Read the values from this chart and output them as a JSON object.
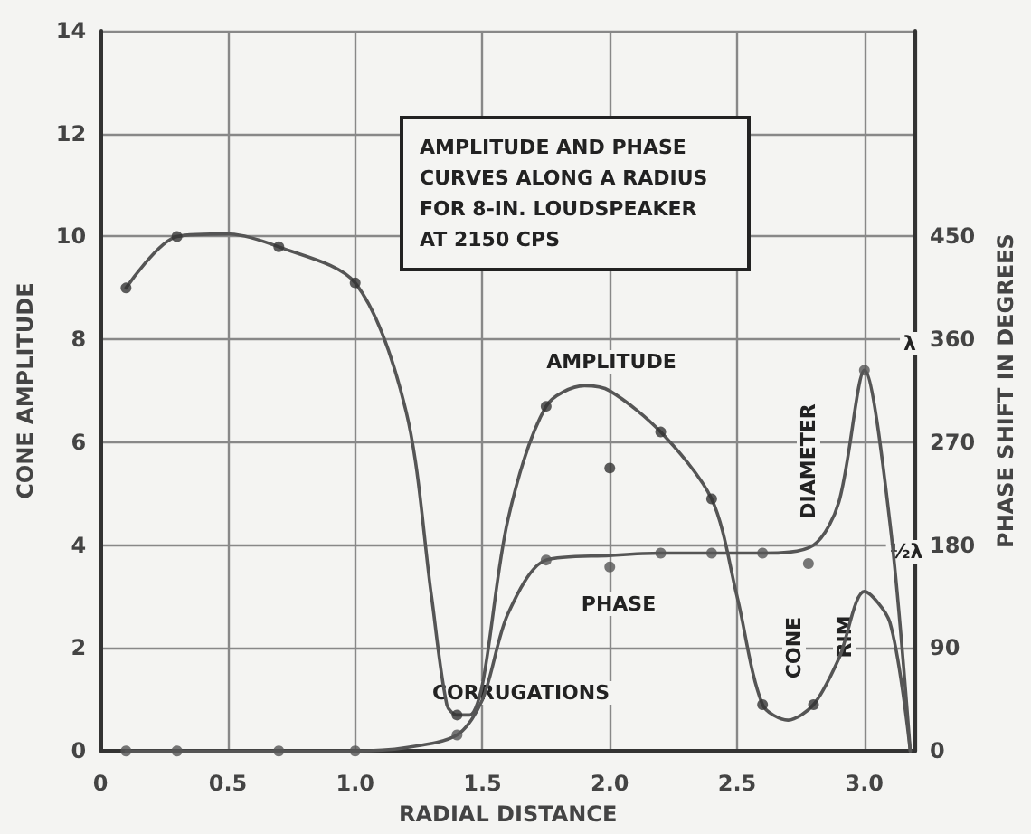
{
  "chart_data": {
    "type": "line",
    "title": "AMPLITUDE AND PHASE CURVES ALONG A RADIUS FOR 8-IN. LOUDSPEAKER AT 2150 CPS",
    "xlabel": "RADIAL DISTANCE",
    "ylabel": "CONE AMPLITUDE",
    "y2label": "PHASE SHIFT IN DEGREES",
    "xlim": [
      0,
      3.2
    ],
    "xticks": [
      0,
      0.5,
      {
        "value": 1,
        "label": "1.0"
      },
      1.5,
      {
        "value": 2,
        "label": "2.0"
      },
      2.5,
      {
        "value": 3,
        "label": "3.0"
      }
    ],
    "ylim": [
      0,
      14
    ],
    "yticks": [
      0,
      2,
      4,
      6,
      8,
      10,
      12,
      14
    ],
    "y2lim": [
      0,
      630
    ],
    "y2ticks": [
      0,
      90,
      180,
      270,
      360,
      450
    ],
    "grid": true,
    "series": [
      {
        "type": "line",
        "axis": "y",
        "color": "#555555",
        "marker": "none",
        "x": [
          0.1,
          0.3,
          0.5,
          0.7,
          1.0,
          1.2,
          1.3,
          1.36,
          1.4,
          1.45,
          1.5,
          1.6,
          1.75,
          1.9,
          2.0,
          2.2,
          2.4,
          2.5,
          2.6,
          2.7,
          2.8,
          2.9,
          3.0,
          3.1,
          3.18
        ],
        "values": [
          9.0,
          10.0,
          10.05,
          9.8,
          9.1,
          6.6,
          3.0,
          0.9,
          0.7,
          0.7,
          1.3,
          4.5,
          6.7,
          7.1,
          7.0,
          6.2,
          4.9,
          3.0,
          0.9,
          0.6,
          0.9,
          1.8,
          3.1,
          2.5,
          0
        ]
      },
      {
        "type": "line",
        "axis": "y2",
        "color": "#555555",
        "marker": "none",
        "x": [
          0.1,
          0.3,
          0.7,
          1.0,
          1.2,
          1.4,
          1.5,
          1.6,
          1.75,
          2.0,
          2.2,
          2.4,
          2.6,
          2.8,
          2.9,
          3.0,
          3.1,
          3.18
        ],
        "values": [
          0,
          0,
          0,
          0,
          3,
          14,
          45,
          120,
          167,
          171,
          173,
          173,
          173,
          180,
          218,
          333,
          200,
          0
        ]
      },
      {
        "type": "scatter",
        "axis": "y",
        "color": "#333333",
        "marker": "circle",
        "x": [
          0.1,
          0.3,
          0.7,
          1.0,
          1.4,
          1.75,
          2.0,
          2.2,
          2.4,
          2.6,
          2.8
        ],
        "values": [
          9.0,
          10.0,
          9.8,
          9.1,
          0.7,
          6.7,
          5.5,
          6.2,
          4.9,
          0.9,
          0.9
        ]
      },
      {
        "type": "scatter",
        "axis": "y2",
        "color": "#555555",
        "marker": "circle",
        "x": [
          0.1,
          0.3,
          0.7,
          1.0,
          1.4,
          1.75,
          2.0,
          2.2,
          2.4,
          2.6,
          2.78,
          3.0
        ],
        "values": [
          0,
          0,
          0,
          0,
          14,
          167,
          161,
          173,
          173,
          173,
          164,
          333
        ]
      }
    ],
    "annotations": [
      "AMPLITUDE",
      "PHASE",
      "CORRUGATIONS",
      "DIAMETER",
      "CONE",
      "RIM",
      "λ",
      "½λ"
    ]
  }
}
